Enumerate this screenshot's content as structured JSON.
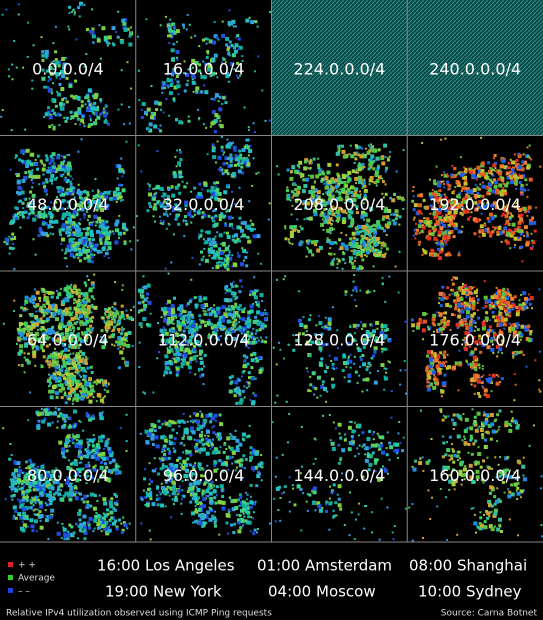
{
  "grid": {
    "cells": [
      "0.0.0.0/4",
      "16.0.0.0/4",
      "224.0.0.0/4",
      "240.0.0.0/4",
      "48.0.0.0/4",
      "32.0.0.0/4",
      "208.0.0.0/4",
      "192.0.0.0/4",
      "64.0.0.0/4",
      "112.0.0.0/4",
      "128.0.0.0/4",
      "176.0.0.0/4",
      "80.0.0.0/4",
      "96.0.0.0/4",
      "144.0.0.0/4",
      "160.0.0.0/4"
    ]
  },
  "legend": {
    "items": [
      "+ +",
      "Average",
      "– –"
    ]
  },
  "times": [
    "16:00 Los Angeles",
    "01:00 Amsterdam",
    "08:00 Shanghai",
    "19:00 New York",
    "04:00 Moscow",
    "10:00 Sydney"
  ],
  "footer": {
    "caption": "Relative IPv4 utilization observed using ICMP Ping requests",
    "source": "Source: Carna Botnet"
  }
}
